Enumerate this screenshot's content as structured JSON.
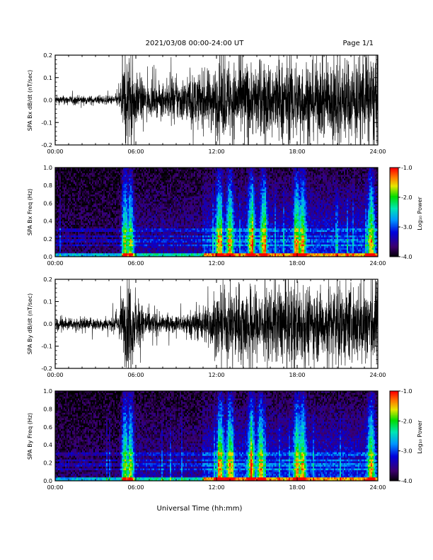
{
  "header": {
    "title": "2021/03/08  00:00-24:00 UT",
    "page": "Page 1/1"
  },
  "footer": {
    "xlabel": "Universal Time (hh:mm)"
  },
  "colorbar": {
    "label": "Log₁₀ Power",
    "tick_labels": [
      "-1.0",
      "-2.0",
      "-3.0",
      "-4.0"
    ],
    "range": [
      -4.0,
      -1.0
    ]
  },
  "chart_data": [
    {
      "type": "line",
      "ylabel": "SPA Bx dB/dt (nT/sec)",
      "ylim": [
        -0.2,
        0.2
      ],
      "y_ticks": [
        "0.2",
        "0.1",
        "0.0",
        "-0.1",
        "-0.2"
      ],
      "x_ticks": [
        "00:00",
        "06:00",
        "12:00",
        "18:00",
        "24:00"
      ],
      "xlim_hours": [
        0,
        24
      ],
      "series": [
        {
          "values": "dense dB/dt trace (approximate amplitude envelope by time)",
          "envelope_hours": [
            0,
            2,
            4,
            4.7,
            5.0,
            5.3,
            5.6,
            6.0,
            7,
            8,
            9,
            10,
            11,
            12,
            13,
            14,
            15,
            16,
            17,
            18,
            19,
            20,
            21,
            22,
            23,
            23.6,
            24
          ],
          "envelope_amplitude": [
            0.02,
            0.02,
            0.02,
            0.03,
            0.16,
            0.22,
            0.22,
            0.12,
            0.07,
            0.07,
            0.1,
            0.11,
            0.13,
            0.16,
            0.18,
            0.18,
            0.17,
            0.18,
            0.19,
            0.2,
            0.18,
            0.18,
            0.2,
            0.19,
            0.2,
            0.22,
            0.2
          ]
        }
      ]
    },
    {
      "type": "heatmap",
      "ylabel": "SPA Bx Freq (Hz)",
      "ylim": [
        0.0,
        1.0
      ],
      "y_ticks": [
        "1.0",
        "0.8",
        "0.6",
        "0.4",
        "0.2",
        "0.0"
      ],
      "x_ticks": [
        "00:00",
        "06:00",
        "12:00",
        "18:00",
        "24:00"
      ],
      "xlim_hours": [
        0,
        24
      ],
      "value_range": [
        -4.0,
        -1.0
      ],
      "bright_hours": [
        5.2,
        5.6,
        12.2,
        13.0,
        14.6,
        15.5,
        18.0,
        18.4,
        23.5
      ],
      "persistent_bands_hz": [
        0.13,
        0.18,
        0.23,
        0.3
      ]
    },
    {
      "type": "line",
      "ylabel": "SPA By dB/dt (nT/sec)",
      "ylim": [
        -0.2,
        0.2
      ],
      "y_ticks": [
        "0.2",
        "0.1",
        "0.0",
        "-0.1",
        "-0.2"
      ],
      "x_ticks": [
        "00:00",
        "06:00",
        "12:00",
        "18:00",
        "24:00"
      ],
      "xlim_hours": [
        0,
        24
      ],
      "series": [
        {
          "values": "dense dB/dt trace (approximate amplitude envelope by time)",
          "envelope_hours": [
            0,
            2,
            4,
            4.7,
            5.0,
            5.3,
            5.6,
            6.0,
            7,
            8,
            9,
            10,
            11,
            12,
            13,
            14,
            15,
            16,
            17,
            18,
            19,
            20,
            21,
            22,
            23,
            23.6,
            24
          ],
          "envelope_amplitude": [
            0.03,
            0.03,
            0.03,
            0.04,
            0.14,
            0.2,
            0.21,
            0.12,
            0.06,
            0.04,
            0.04,
            0.06,
            0.09,
            0.13,
            0.17,
            0.19,
            0.17,
            0.17,
            0.19,
            0.2,
            0.18,
            0.17,
            0.18,
            0.18,
            0.2,
            0.22,
            0.2
          ]
        }
      ]
    },
    {
      "type": "heatmap",
      "ylabel": "SPA By Freq (Hz)",
      "ylim": [
        0.0,
        1.0
      ],
      "y_ticks": [
        "1.0",
        "0.8",
        "0.6",
        "0.4",
        "0.2",
        "0.0"
      ],
      "x_ticks": [
        "00:00",
        "06:00",
        "12:00",
        "18:00",
        "24:00"
      ],
      "xlim_hours": [
        0,
        24
      ],
      "value_range": [
        -4.0,
        -1.0
      ],
      "bright_hours": [
        5.2,
        5.6,
        12.3,
        13.0,
        14.6,
        15.3,
        18.0,
        18.4,
        23.5
      ],
      "persistent_bands_hz": [
        0.13,
        0.18,
        0.23,
        0.3
      ]
    }
  ]
}
